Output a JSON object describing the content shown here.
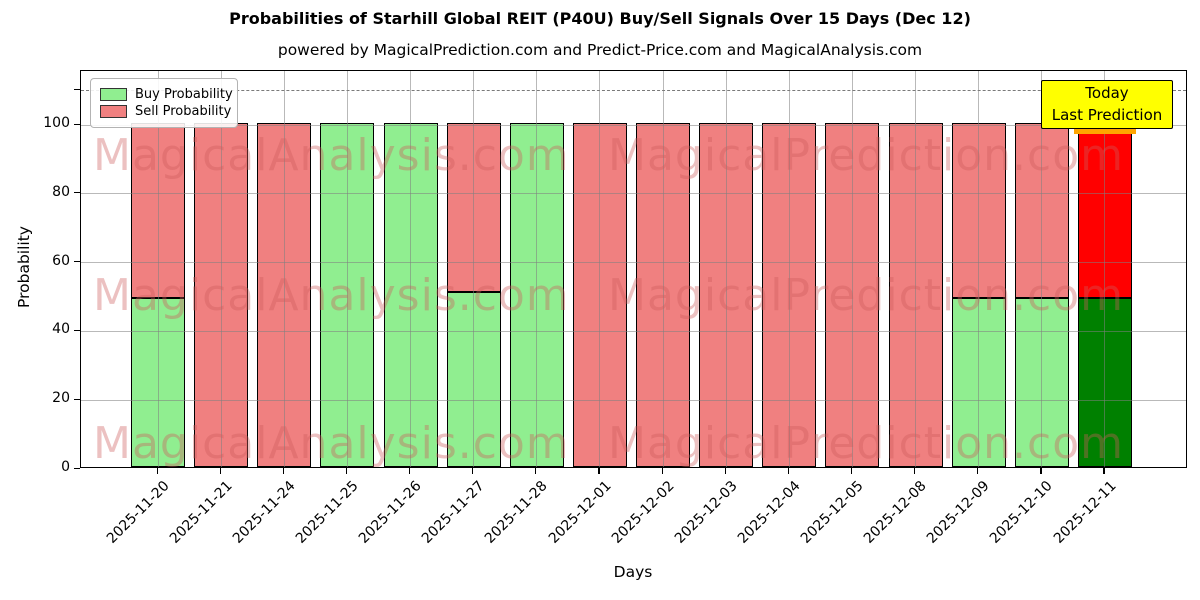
{
  "title": "Probabilities of Starhill Global REIT (P40U) Buy/Sell Signals Over 15 Days (Dec 12)",
  "subtitle": "powered by MagicalPrediction.com and Predict-Price.com and MagicalAnalysis.com",
  "annotation": {
    "line1": "Today",
    "line2": "Last Prediction",
    "bg_color": "#ffff00"
  },
  "watermarks": {
    "left_text": "MagicalAnalysis.com",
    "right_text": "MagicalPrediction.com"
  },
  "chart_data": {
    "type": "bar",
    "stacked": true,
    "title": "Probabilities of Starhill Global REIT (P40U) Buy/Sell Signals Over 15 Days (Dec 12)",
    "subtitle": "powered by MagicalPrediction.com and Predict-Price.com and MagicalAnalysis.com",
    "xlabel": "Days",
    "ylabel": "Probability",
    "categories": [
      "2025-11-20",
      "2025-11-21",
      "2025-11-24",
      "2025-11-25",
      "2025-11-26",
      "2025-11-27",
      "2025-11-28",
      "2025-12-01",
      "2025-12-02",
      "2025-12-03",
      "2025-12-04",
      "2025-12-05",
      "2025-12-08",
      "2025-12-09",
      "2025-12-10",
      "2025-12-11"
    ],
    "series": [
      {
        "name": "Buy Probability",
        "color": "#90ee90",
        "values": [
          49,
          0,
          0,
          100,
          100,
          51,
          100,
          0,
          0,
          0,
          0,
          0,
          0,
          49,
          49,
          49
        ]
      },
      {
        "name": "Sell Probability",
        "color": "#f08080",
        "values": [
          51,
          100,
          100,
          0,
          0,
          49,
          0,
          100,
          100,
          100,
          100,
          100,
          100,
          51,
          51,
          51
        ]
      }
    ],
    "today": {
      "index": 15,
      "date": "2025-12-11",
      "buy_color": "#008000",
      "sell_color": "#ff0000",
      "edge_color": "#ffa500"
    },
    "ylim": [
      0,
      115
    ],
    "yticks": [
      0,
      20,
      40,
      60,
      80,
      100
    ],
    "dashed_line_y": 110,
    "grid": true,
    "legend_position": "upper left",
    "bar_edge_color": "#000000"
  }
}
